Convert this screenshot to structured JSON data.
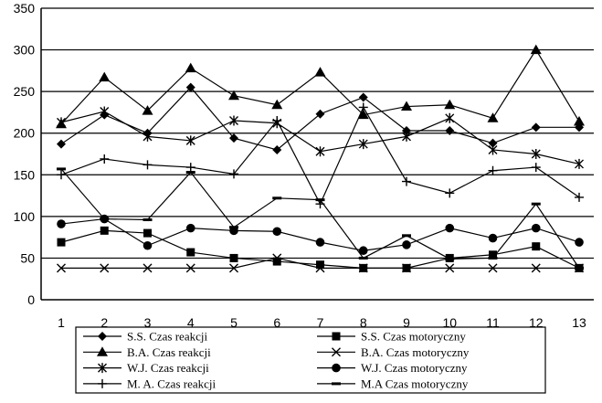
{
  "chart_data": {
    "type": "line",
    "title": "",
    "xlabel": "",
    "ylabel": "",
    "x": [
      "1",
      "2",
      "3",
      "4",
      "5",
      "6",
      "7",
      "8",
      "9",
      "10",
      "11",
      "12",
      "13"
    ],
    "ylim": [
      0,
      350
    ],
    "yticks": [
      "0",
      "50",
      "100",
      "150",
      "200",
      "250",
      "300",
      "350"
    ],
    "grid": "horizontal",
    "legend_position": "bottom",
    "colors": {
      "lines": "#000000",
      "grid": "#000000",
      "background": "#ffffff"
    },
    "series": [
      {
        "name": "S.S. Czas reakcji",
        "marker": "diamond",
        "values": [
          187,
          222,
          200,
          255,
          194,
          180,
          223,
          243,
          203,
          203,
          188,
          207,
          207
        ]
      },
      {
        "name": "S.S. Czas motoryczny",
        "marker": "square",
        "values": [
          69,
          83,
          80,
          57,
          50,
          46,
          42,
          38,
          38,
          50,
          54,
          64,
          38
        ]
      },
      {
        "name": "B.A. Czas reakcji",
        "marker": "triangle",
        "values": [
          211,
          267,
          227,
          278,
          245,
          234,
          273,
          222,
          232,
          234,
          218,
          300,
          214
        ]
      },
      {
        "name": "B.A. Czas motoryczny",
        "marker": "x",
        "values": [
          38,
          38,
          38,
          38,
          38,
          50,
          38,
          38,
          38,
          38,
          38,
          38,
          38
        ]
      },
      {
        "name": "W.J. Czas reakcji",
        "marker": "star",
        "values": [
          213,
          226,
          196,
          191,
          215,
          212,
          178,
          187,
          196,
          218,
          180,
          175,
          163
        ]
      },
      {
        "name": "W.J. Czas motoryczny",
        "marker": "circle",
        "values": [
          91,
          97,
          65,
          86,
          83,
          82,
          69,
          59,
          66,
          86,
          74,
          86,
          69
        ]
      },
      {
        "name": "M. A. Czas reakcji",
        "marker": "plus",
        "values": [
          150,
          169,
          162,
          159,
          151,
          215,
          115,
          231,
          142,
          128,
          155,
          159,
          123
        ]
      },
      {
        "name": "M.A Czas motoryczny",
        "marker": "dash",
        "values": [
          157,
          97,
          96,
          153,
          87,
          122,
          120,
          50,
          77,
          49,
          50,
          115,
          38
        ]
      }
    ]
  }
}
